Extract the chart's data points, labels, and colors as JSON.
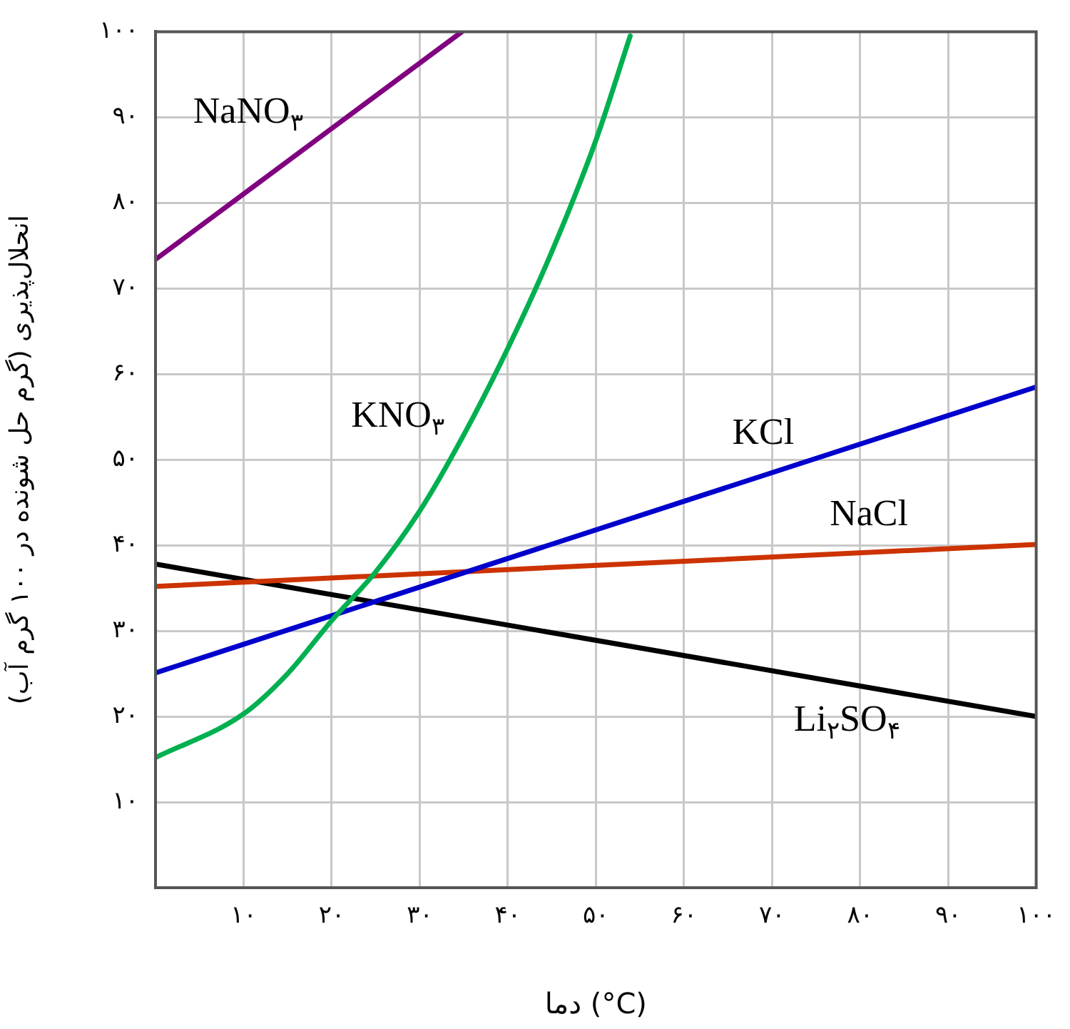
{
  "chart_data": {
    "type": "line",
    "xlabel": "دما (°C)",
    "ylabel": "انحلال‌پذیری (گرم حل شونده در ۱۰۰ گرم آب)",
    "xlim": [
      0,
      100
    ],
    "ylim": [
      0,
      100
    ],
    "xticks": [
      {
        "value": 10,
        "label": "۱۰"
      },
      {
        "value": 20,
        "label": "۲۰"
      },
      {
        "value": 30,
        "label": "۳۰"
      },
      {
        "value": 40,
        "label": "۴۰"
      },
      {
        "value": 50,
        "label": "۵۰"
      },
      {
        "value": 60,
        "label": "۶۰"
      },
      {
        "value": 70,
        "label": "۷۰"
      },
      {
        "value": 80,
        "label": "۸۰"
      },
      {
        "value": 90,
        "label": "۹۰"
      },
      {
        "value": 100,
        "label": "۱۰۰"
      }
    ],
    "yticks": [
      {
        "value": 10,
        "label": "۱۰"
      },
      {
        "value": 20,
        "label": "۲۰"
      },
      {
        "value": 30,
        "label": "۳۰"
      },
      {
        "value": 40,
        "label": "۴۰"
      },
      {
        "value": 50,
        "label": "۵۰"
      },
      {
        "value": 60,
        "label": "۶۰"
      },
      {
        "value": 70,
        "label": "۷۰"
      },
      {
        "value": 80,
        "label": "۸۰"
      },
      {
        "value": 90,
        "label": "۹۰"
      },
      {
        "value": 100,
        "label": "۱۰۰"
      }
    ],
    "grid": true,
    "marker": "none",
    "line_style": "solid",
    "series": [
      {
        "name": "NaNO$_{۳}$",
        "color": "#800080",
        "x": [
          0,
          34.8
        ],
        "values": [
          73.4,
          100
        ]
      },
      {
        "name": "KNO$_{۳}$",
        "color": "#00b050",
        "x": [
          0,
          10,
          15,
          20,
          25,
          30,
          35,
          40,
          45,
          50,
          53.9
        ],
        "values": [
          15.2,
          20.3,
          25,
          31.2,
          36.9,
          44,
          52.9,
          63,
          74.3,
          87.3,
          99.5
        ]
      },
      {
        "name": "KCl",
        "color": "#0000cc",
        "x": [
          0,
          100
        ],
        "values": [
          25.1,
          58.5
        ]
      },
      {
        "name": "NaCl",
        "color": "#cc3300",
        "x": [
          0,
          100
        ],
        "values": [
          35.2,
          40.1
        ]
      },
      {
        "name": "Li$_{۲}$SO$_{۴}$",
        "color": "#000000",
        "x": [
          0,
          100
        ],
        "values": [
          37.8,
          20.0
        ]
      }
    ]
  }
}
